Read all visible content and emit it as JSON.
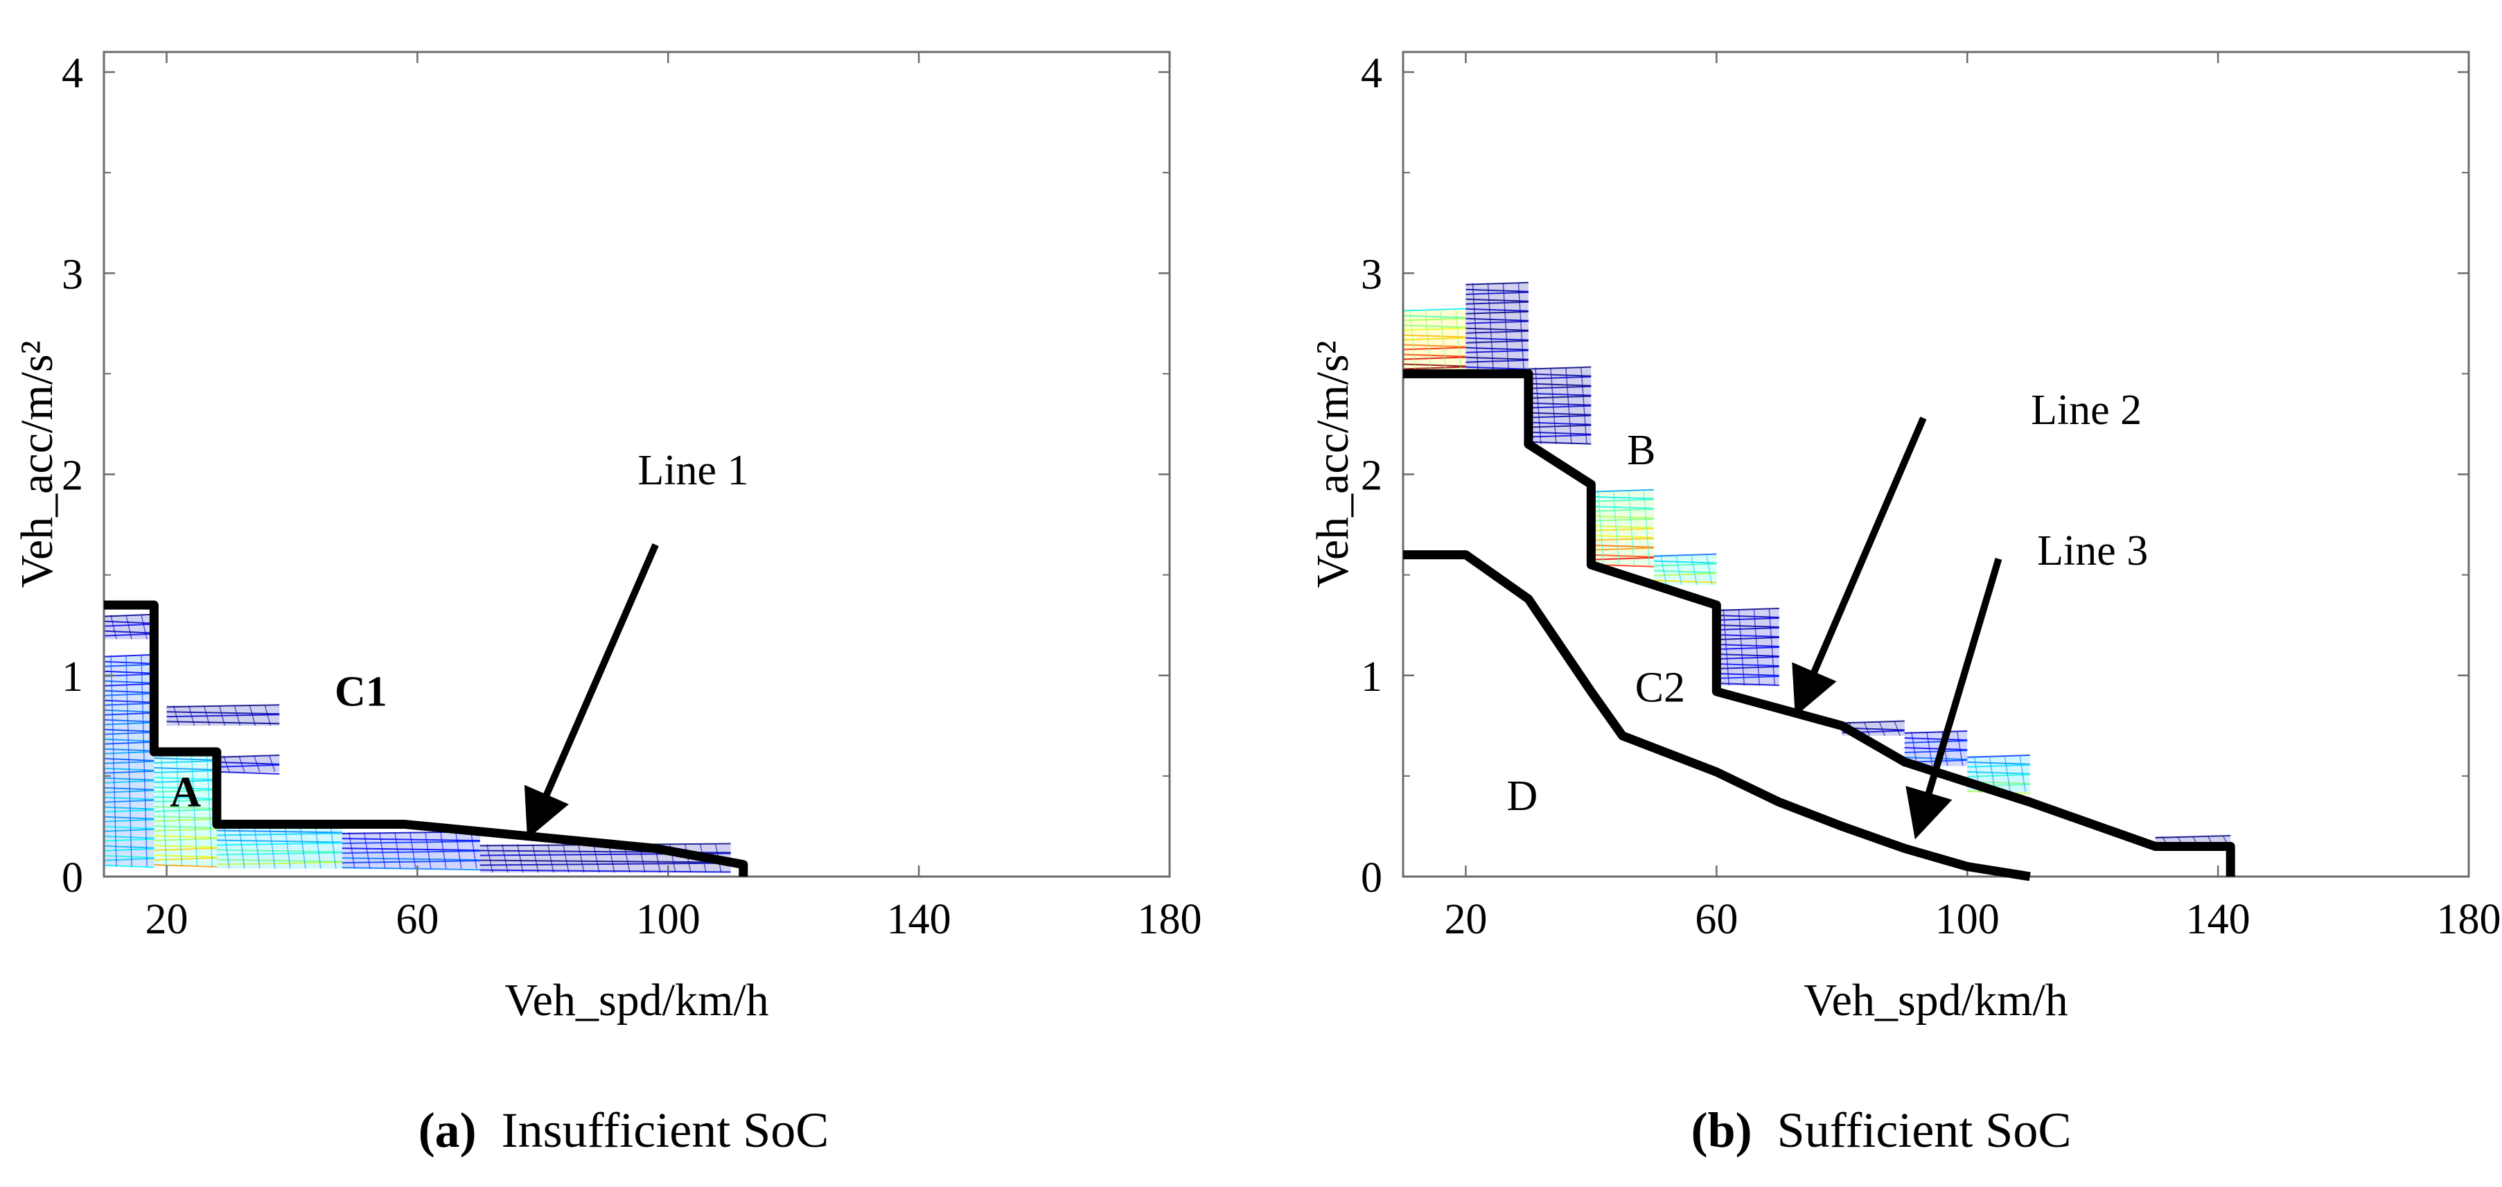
{
  "chart_data": [
    {
      "type": "line",
      "caption_prefix": "(a)",
      "caption_text": "Insufficient SoC",
      "xlabel": "Veh_spd/km/h",
      "ylabel": "Veh_acc/m/s²",
      "xlim": [
        10,
        180
      ],
      "ylim": [
        0,
        4.1
      ],
      "xticks": [
        20,
        60,
        100,
        140,
        180
      ],
      "yticks": [
        0,
        1,
        2,
        3,
        4
      ],
      "grid": false,
      "series": [
        {
          "name": "Line 1",
          "x": [
            10,
            18,
            18,
            28,
            28,
            58,
            78,
            98,
            112,
            112
          ],
          "y": [
            1.35,
            1.35,
            0.62,
            0.62,
            0.26,
            0.26,
            0.2,
            0.14,
            0.06,
            0.0
          ]
        }
      ],
      "region_labels": [
        {
          "text": "A",
          "bold": true,
          "x": 23,
          "y": 0.35
        },
        {
          "text": "C1",
          "bold": true,
          "x": 51,
          "y": 0.85
        }
      ],
      "line_labels": [
        {
          "text": "Line 1",
          "x": 104,
          "y": 1.95,
          "arrow_from": [
            98,
            1.65
          ],
          "arrow_to": [
            78,
            0.22
          ]
        }
      ],
      "heat_cells": [
        {
          "x0": 10,
          "x1": 18,
          "y0": 1.18,
          "y1": 1.3,
          "intensity": 0.1
        },
        {
          "x0": 10,
          "x1": 18,
          "y0": 0.05,
          "y1": 1.1,
          "intensity": 0.3
        },
        {
          "x0": 18,
          "x1": 28,
          "y0": 0.05,
          "y1": 0.62,
          "intensity": 0.55
        },
        {
          "x0": 20,
          "x1": 38,
          "y0": 0.75,
          "y1": 0.85,
          "intensity": 0.05
        },
        {
          "x0": 28,
          "x1": 38,
          "y0": 0.52,
          "y1": 0.6,
          "intensity": 0.1
        },
        {
          "x0": 28,
          "x1": 48,
          "y0": 0.04,
          "y1": 0.26,
          "intensity": 0.45
        },
        {
          "x0": 48,
          "x1": 70,
          "y0": 0.04,
          "y1": 0.22,
          "intensity": 0.2
        },
        {
          "x0": 70,
          "x1": 110,
          "y0": 0.02,
          "y1": 0.16,
          "intensity": 0.05
        }
      ]
    },
    {
      "type": "line",
      "caption_prefix": "(b)",
      "caption_text": "Sufficient SoC",
      "xlabel": "Veh_spd/km/h",
      "ylabel": "Veh_acc/m/s²",
      "xlim": [
        10,
        180
      ],
      "ylim": [
        0,
        4.1
      ],
      "xticks": [
        20,
        60,
        100,
        140,
        180
      ],
      "yticks": [
        0,
        1,
        2,
        3,
        4
      ],
      "grid": false,
      "series": [
        {
          "name": "Line 2",
          "x": [
            10,
            30,
            30,
            40,
            40,
            60,
            60,
            80,
            90,
            110,
            130,
            142,
            142
          ],
          "y": [
            2.5,
            2.5,
            2.15,
            1.95,
            1.55,
            1.35,
            0.92,
            0.75,
            0.57,
            0.37,
            0.15,
            0.15,
            0.0
          ]
        },
        {
          "name": "Line 3",
          "x": [
            10,
            20,
            30,
            40,
            45,
            60,
            70,
            80,
            90,
            100,
            110
          ],
          "y": [
            1.6,
            1.6,
            1.38,
            0.92,
            0.7,
            0.52,
            0.37,
            0.25,
            0.14,
            0.05,
            0.0
          ]
        }
      ],
      "region_labels": [
        {
          "text": "B",
          "bold": false,
          "x": 48,
          "y": 2.05
        },
        {
          "text": "C2",
          "bold": false,
          "x": 51,
          "y": 0.87
        },
        {
          "text": "D",
          "bold": false,
          "x": 29,
          "y": 0.33
        }
      ],
      "line_labels": [
        {
          "text": "Line 2",
          "x": 119,
          "y": 2.25,
          "arrow_from": [
            93,
            2.28
          ],
          "arrow_to": [
            73,
            0.83
          ]
        },
        {
          "text": "Line 3",
          "x": 120,
          "y": 1.55,
          "arrow_from": [
            105,
            1.58
          ],
          "arrow_to": [
            92,
            0.22
          ]
        }
      ],
      "heat_cells": [
        {
          "x0": 10,
          "x1": 20,
          "y0": 2.5,
          "y1": 2.82,
          "intensity": 0.85
        },
        {
          "x0": 20,
          "x1": 30,
          "y0": 2.5,
          "y1": 2.95,
          "intensity": 0.05
        },
        {
          "x0": 30,
          "x1": 40,
          "y0": 2.15,
          "y1": 2.53,
          "intensity": 0.05
        },
        {
          "x0": 40,
          "x1": 50,
          "y0": 1.55,
          "y1": 1.92,
          "intensity": 0.7
        },
        {
          "x0": 50,
          "x1": 60,
          "y0": 1.45,
          "y1": 1.6,
          "intensity": 0.55
        },
        {
          "x0": 60,
          "x1": 70,
          "y0": 0.95,
          "y1": 1.33,
          "intensity": 0.1
        },
        {
          "x0": 80,
          "x1": 90,
          "y0": 0.7,
          "y1": 0.77,
          "intensity": 0.05
        },
        {
          "x0": 90,
          "x1": 100,
          "y0": 0.55,
          "y1": 0.72,
          "intensity": 0.2
        },
        {
          "x0": 100,
          "x1": 110,
          "y0": 0.42,
          "y1": 0.6,
          "intensity": 0.45
        },
        {
          "x0": 130,
          "x1": 142,
          "y0": 0.15,
          "y1": 0.2,
          "intensity": 0.05
        }
      ]
    }
  ]
}
